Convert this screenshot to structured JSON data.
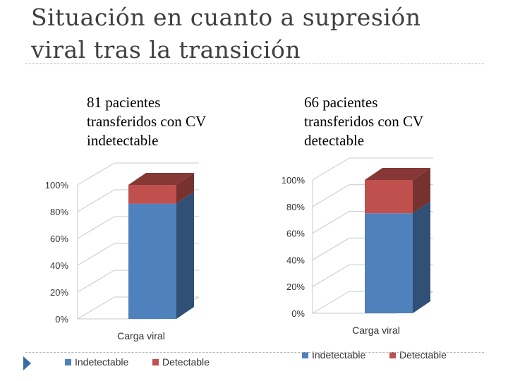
{
  "slide": {
    "title": "Situación en cuanto a supresión viral tras la transición"
  },
  "left_panel": {
    "line1": "81 pacientes",
    "line2": "transferidos con CV",
    "line3": "indetectable"
  },
  "right_panel": {
    "line1": "66 pacientes",
    "line2": "transferidos con CV",
    "line3": "detectable"
  },
  "colors": {
    "indetectable": "#4f81bd",
    "detectable": "#c0504d"
  },
  "chart_data": [
    {
      "type": "bar",
      "stacked": true,
      "percent": true,
      "categories": [
        "Carga viral"
      ],
      "xlabel": "Carga viral",
      "series": [
        {
          "name": "Indetectable",
          "values": [
            86
          ]
        },
        {
          "name": "Detectable",
          "values": [
            14
          ]
        }
      ],
      "yticks": [
        "0%",
        "20%",
        "40%",
        "60%",
        "80%",
        "100%"
      ],
      "ylim": [
        0,
        100
      ],
      "legend": "bottom",
      "grid": true
    },
    {
      "type": "bar",
      "stacked": true,
      "percent": true,
      "categories": [
        "Carga viral"
      ],
      "xlabel": "Carga viral",
      "series": [
        {
          "name": "Indetectable",
          "values": [
            75
          ]
        },
        {
          "name": "Detectable",
          "values": [
            25
          ]
        }
      ],
      "yticks": [
        "0%",
        "20%",
        "40%",
        "60%",
        "80%",
        "100%"
      ],
      "ylim": [
        0,
        100
      ],
      "legend": "bottom",
      "grid": true
    }
  ]
}
